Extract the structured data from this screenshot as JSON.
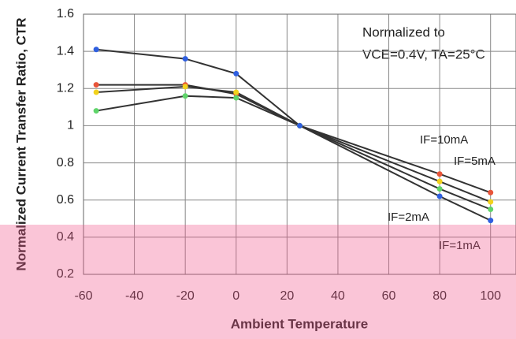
{
  "chart_data": {
    "type": "line",
    "ylabel": "Normalized Current Transfer Ratio, CTR",
    "xlabel": "Ambient Temperature",
    "annotations": [
      "Normalized to",
      "VCE=0.4V, TA=25°C"
    ],
    "x": [
      -55,
      -20,
      0,
      25,
      80,
      100
    ],
    "series": [
      {
        "name": "IF=10mA",
        "color": "#e8553a",
        "values": [
          1.22,
          1.22,
          1.17,
          1.0,
          0.74,
          0.64
        ]
      },
      {
        "name": "IF=5mA",
        "color": "#f2d21c",
        "values": [
          1.18,
          1.21,
          1.18,
          1.0,
          0.7,
          0.59
        ]
      },
      {
        "name": "IF=2mA",
        "color": "#5fd46a",
        "values": [
          1.08,
          1.16,
          1.15,
          1.0,
          0.66,
          0.55
        ]
      },
      {
        "name": "IF=1mA",
        "color": "#2f5fe0",
        "values": [
          1.41,
          1.36,
          1.28,
          1.0,
          0.62,
          0.49
        ]
      }
    ],
    "xlim": [
      -60,
      110
    ],
    "xticks": [
      -60,
      -40,
      -20,
      0,
      20,
      40,
      60,
      80,
      100
    ],
    "ylim": [
      0.2,
      1.6
    ],
    "yticks": [
      0.2,
      0.4,
      0.6,
      0.8,
      1,
      1.2,
      1.4,
      1.6
    ],
    "grid": true
  }
}
